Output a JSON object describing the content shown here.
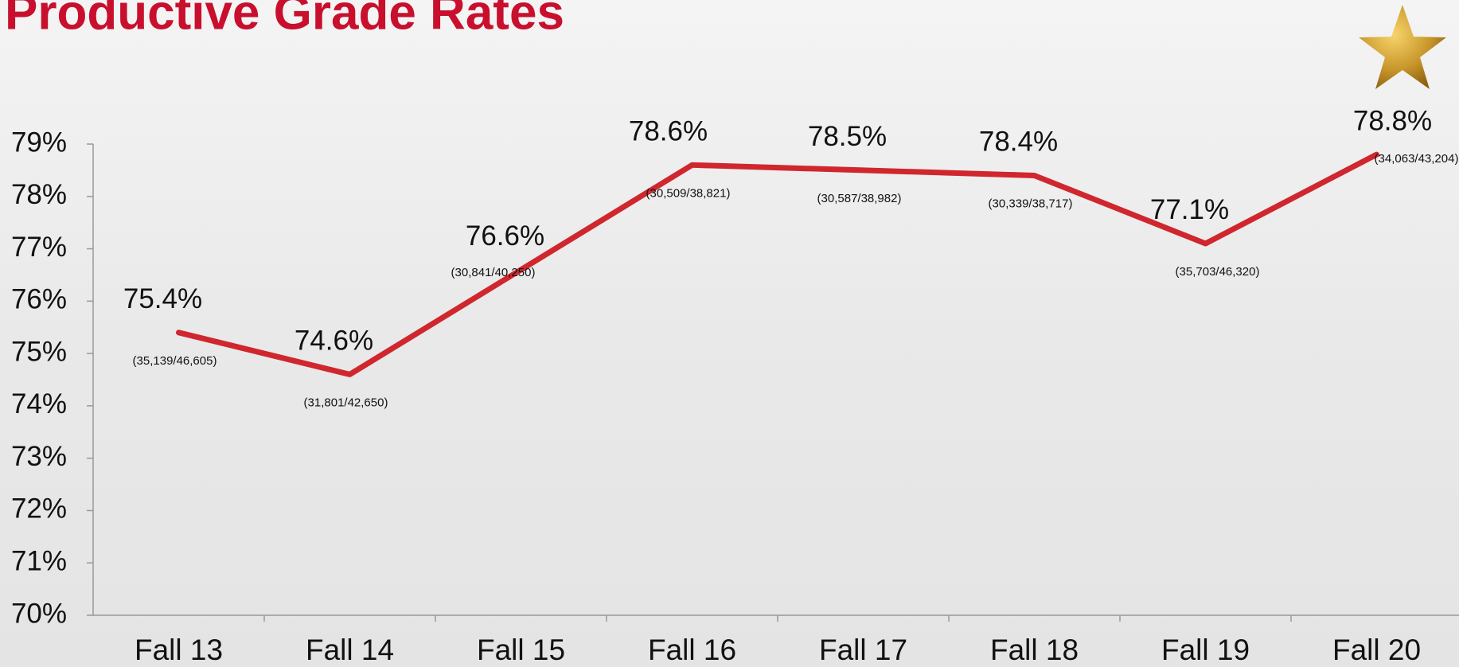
{
  "chart_data": {
    "type": "line",
    "title": "Productive Grade Rates",
    "categories": [
      "Fall 13",
      "Fall 14",
      "Fall 15",
      "Fall 16",
      "Fall 17",
      "Fall 18",
      "Fall 19",
      "Fall 20"
    ],
    "series": [
      {
        "name": "Productive Grade Rate",
        "color": "#d0262e",
        "values": [
          75.4,
          74.6,
          76.6,
          78.6,
          78.5,
          78.4,
          77.1,
          78.8
        ],
        "value_labels": [
          "75.4%",
          "74.6%",
          "76.6%",
          "78.6%",
          "78.5%",
          "78.4%",
          "77.1%",
          "78.8%"
        ],
        "counts": [
          "(35,139/46,605)",
          "(31,801/42,650)",
          "(30,841/40,250)",
          "(30,509/38,821)",
          "(30,587/38,982)",
          "(30,339/38,717)",
          "(35,703/46,320)",
          "(34,063/43,204)"
        ]
      }
    ],
    "ylim": [
      70,
      79
    ],
    "yticks": [
      {
        "value": 70,
        "label": "70%"
      },
      {
        "value": 71,
        "label": "71%"
      },
      {
        "value": 72,
        "label": "72%"
      },
      {
        "value": 73,
        "label": "73%"
      },
      {
        "value": 74,
        "label": "74%"
      },
      {
        "value": 75,
        "label": "75%"
      },
      {
        "value": 76,
        "label": "76%"
      },
      {
        "value": 77,
        "label": "77%"
      },
      {
        "value": 78,
        "label": "78%"
      },
      {
        "value": 79,
        "label": "79%"
      }
    ],
    "grid": false
  }
}
